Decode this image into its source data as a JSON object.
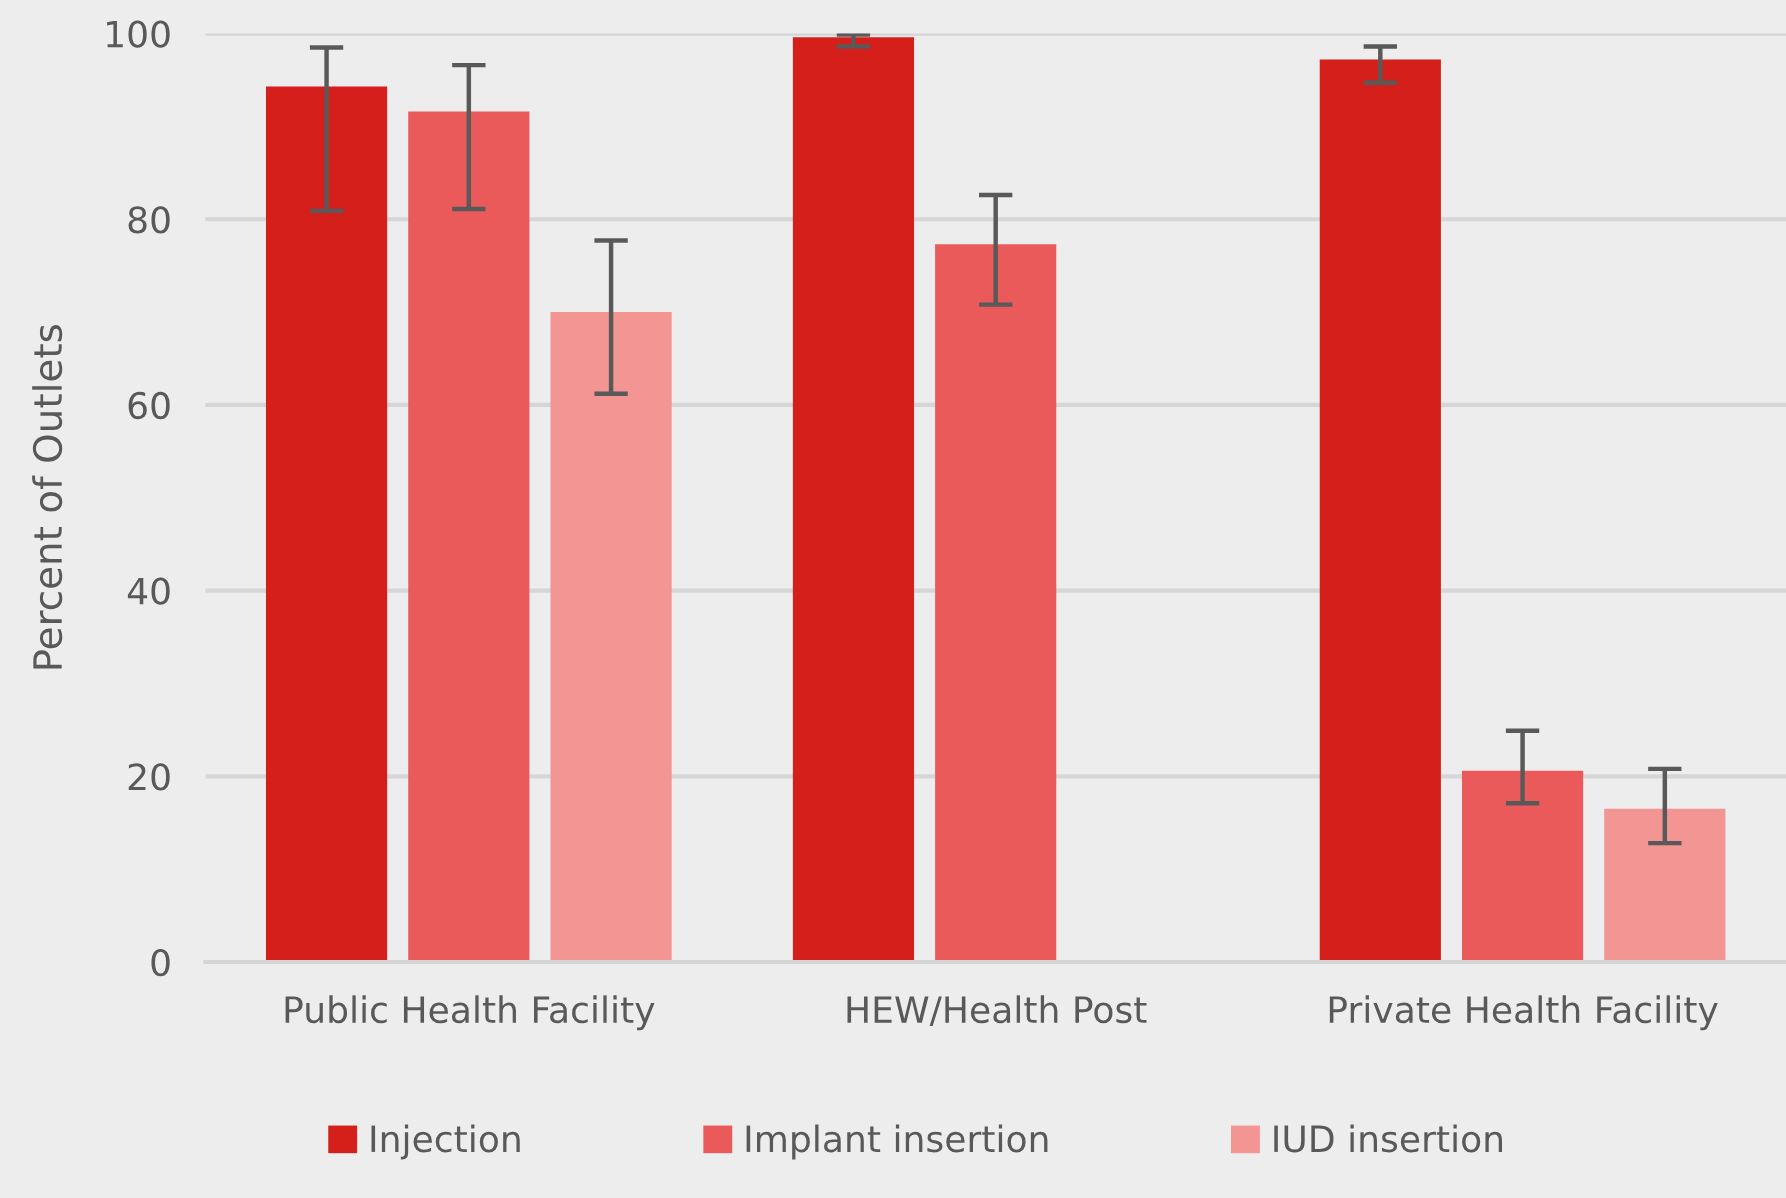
{
  "chart_data": {
    "type": "bar",
    "ylabel": "Percent of Outlets",
    "categories": [
      "Public Health Facility",
      "HEW/Health Post",
      "Private Health Facility"
    ],
    "series": [
      {
        "name": "Injection",
        "color": "#d41f1b",
        "values": [
          94.3,
          99.6,
          97.2
        ],
        "errors": [
          [
            80.9,
            98.5
          ],
          [
            98.6,
            99.9
          ],
          [
            94.7,
            98.6
          ]
        ]
      },
      {
        "name": "Implant insertion",
        "color": "#ea5a5a",
        "values": [
          91.6,
          77.3,
          20.6
        ],
        "errors": [
          [
            81.1,
            96.6
          ],
          [
            70.8,
            82.6
          ],
          [
            17.1,
            24.9
          ]
        ]
      },
      {
        "name": "IUD insertion",
        "color": "#f29593",
        "values": [
          70.0,
          null,
          16.5
        ],
        "errors": [
          [
            61.2,
            77.7
          ],
          null,
          [
            12.8,
            20.8
          ]
        ]
      }
    ],
    "ylim": [
      0,
      100
    ],
    "yticks": [
      0,
      20,
      40,
      60,
      80,
      100
    ],
    "grid": "y",
    "legend": "bottom"
  }
}
